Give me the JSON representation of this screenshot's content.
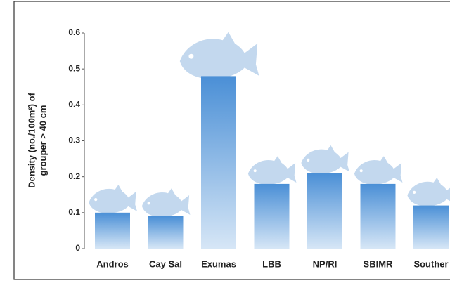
{
  "chart_data": {
    "type": "bar",
    "ylabel": [
      "Density (no./100m²) of",
      "grouper > 40 cm"
    ],
    "categories": [
      "Andros",
      "Cay Sal",
      "Exumas",
      "LBB",
      "NP/RI",
      "SBIMR",
      "Souther"
    ],
    "values": [
      0.1,
      0.09,
      0.48,
      0.18,
      0.21,
      0.18,
      0.12
    ],
    "color": "#4a8fd6",
    "ylim": [
      0,
      0.6
    ],
    "yticks": [
      0,
      0.1,
      0.2,
      0.3,
      0.4,
      0.5,
      0.6
    ]
  }
}
